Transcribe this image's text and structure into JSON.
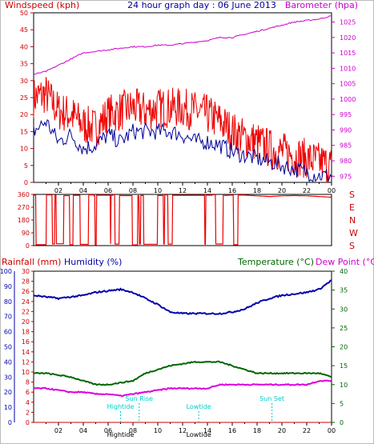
{
  "title": "24 hour graph day : 06 June 2013",
  "colors": {
    "wind": "#ee0000",
    "gust": "#ee0000",
    "avg": "#000099",
    "baro": "#cc00cc",
    "dir": "#ee0000",
    "rain": "#cc0000",
    "humidity": "#0000aa",
    "temp": "#006600",
    "dew": "#dd00dd",
    "tide": "#00cccc"
  },
  "chart_data": [
    {
      "id": "wind_baro",
      "type": "line",
      "title": "24 hour graph day : 06 June 2013",
      "ylabel": "Windspeed (kph)",
      "y2label": "Barometer (hpa)",
      "xticks": [
        "02",
        "04",
        "06",
        "08",
        "10",
        "12",
        "14",
        "16",
        "18",
        "20",
        "22",
        "00"
      ],
      "yticks": [
        0,
        5,
        10,
        15,
        20,
        25,
        30,
        35,
        40,
        45,
        50
      ],
      "y2ticks": [
        975,
        980,
        985,
        990,
        995,
        1000,
        1005,
        1010,
        1015,
        1020,
        1025
      ],
      "ylim": [
        0,
        50
      ],
      "y2lim": [
        973,
        1028
      ],
      "x": [
        0,
        1,
        2,
        3,
        4,
        5,
        6,
        7,
        8,
        9,
        10,
        11,
        12,
        13,
        14,
        15,
        16,
        17,
        18,
        19,
        20,
        21,
        22,
        23,
        24
      ],
      "series": [
        {
          "name": "Windspeed (kph)",
          "axis": "left",
          "values": [
            25,
            26,
            21,
            20,
            17,
            16,
            20,
            21,
            22,
            21,
            22,
            22,
            22,
            21,
            20,
            18,
            15,
            13,
            12,
            10,
            9,
            8,
            7,
            6,
            5
          ]
        },
        {
          "name": "Average",
          "axis": "left",
          "values": [
            15,
            18,
            12,
            14,
            10,
            11,
            14,
            12,
            15,
            15,
            15,
            15,
            14,
            12,
            12,
            11,
            9,
            8,
            7,
            6,
            5,
            4,
            3,
            2,
            2
          ]
        },
        {
          "name": "Barometer (hpa)",
          "axis": "right",
          "values": [
            1008,
            1009,
            1011,
            1013,
            1015,
            1015.5,
            1016,
            1016.5,
            1017,
            1017,
            1017.5,
            1017.5,
            1018,
            1018.5,
            1019,
            1020,
            1020,
            1021,
            1022,
            1023,
            1024,
            1025,
            1025.5,
            1026,
            1027
          ]
        }
      ]
    },
    {
      "id": "direction",
      "type": "line",
      "yticks": [
        0,
        90,
        180,
        270,
        360
      ],
      "ylim": [
        0,
        360
      ],
      "compass": [
        "E",
        "S",
        "W",
        "N",
        "E",
        "S",
        "W",
        "S"
      ],
      "compass_right": [
        "S",
        "E",
        "N",
        "W",
        "S"
      ],
      "x": [
        0,
        1,
        2,
        3,
        4,
        5,
        6,
        7,
        8,
        9,
        10,
        11,
        12,
        13,
        14,
        15,
        16,
        17,
        18,
        19,
        20,
        21,
        22,
        23,
        24
      ],
      "values": [
        0,
        350,
        20,
        350,
        340,
        350,
        0,
        355,
        10,
        350,
        0,
        5,
        340,
        355,
        0,
        350,
        355,
        355,
        350,
        345,
        350,
        352,
        350,
        345,
        340
      ]
    },
    {
      "id": "rain_humidity_temp",
      "type": "line",
      "ylabel": "Rainfall (mm)",
      "y1label": "Humidity (%)",
      "y2label": "Temperature (°C)",
      "y3label": "Dew Point (°C)",
      "xticks": [
        "02",
        "04",
        "06",
        "08",
        "10",
        "12",
        "14",
        "16",
        "18",
        "20",
        "22",
        "00"
      ],
      "humidity_ticks": [
        0,
        10,
        20,
        30,
        40,
        50,
        60,
        70,
        80,
        90,
        100
      ],
      "rain_ticks": [
        0,
        2,
        4,
        6,
        8,
        10,
        12,
        14,
        16,
        18,
        20,
        22,
        24,
        26,
        28,
        30
      ],
      "temp_ticks": [
        0,
        5,
        10,
        15,
        20,
        25,
        30,
        35,
        40
      ],
      "humidity_lim": [
        0,
        100
      ],
      "temp_lim": [
        0,
        40
      ],
      "x": [
        0,
        1,
        2,
        3,
        4,
        5,
        6,
        7,
        8,
        9,
        10,
        11,
        12,
        13,
        14,
        15,
        16,
        17,
        18,
        19,
        20,
        21,
        22,
        23,
        24
      ],
      "series": [
        {
          "name": "Humidity (%)",
          "axis": "humidity",
          "values": [
            84,
            83,
            82,
            83,
            84,
            86,
            87,
            88,
            86,
            82,
            78,
            73,
            72,
            72,
            72,
            72,
            73,
            75,
            79,
            82,
            84,
            85,
            86,
            88,
            94
          ]
        },
        {
          "name": "Temperature (°C)",
          "axis": "temp",
          "values": [
            13,
            13,
            12.5,
            12,
            11,
            10,
            10,
            10.5,
            11,
            13,
            14,
            15,
            15.5,
            16,
            16,
            16,
            15,
            14,
            13,
            13,
            13,
            13,
            13,
            13,
            12
          ]
        },
        {
          "name": "Dew Point (°C)",
          "axis": "temp",
          "values": [
            9,
            9,
            8.5,
            8,
            8,
            7.5,
            7.5,
            7,
            7.5,
            8,
            8.5,
            9,
            9,
            9,
            9,
            10,
            10,
            10,
            10,
            10,
            10,
            10,
            10,
            11,
            11
          ]
        },
        {
          "name": "Rainfall (mm)",
          "axis": "rain",
          "values": [
            0,
            0,
            0,
            0,
            0,
            0,
            0,
            0,
            0,
            0,
            0,
            0,
            0,
            0,
            0,
            0,
            0,
            0,
            0,
            0,
            0,
            0,
            0,
            0,
            0
          ]
        }
      ],
      "events": [
        {
          "label": "Hightide",
          "x": 7.0,
          "row": 2,
          "xlabel": "Hightide"
        },
        {
          "label": "Sun Rise",
          "x": 8.5,
          "row": 1,
          "xlabel": ""
        },
        {
          "label": "Lowtide",
          "x": 13.3,
          "row": 2,
          "xlabel": "Lowtide"
        },
        {
          "label": "Sun Set",
          "x": 19.2,
          "row": 1,
          "xlabel": ""
        }
      ]
    }
  ]
}
